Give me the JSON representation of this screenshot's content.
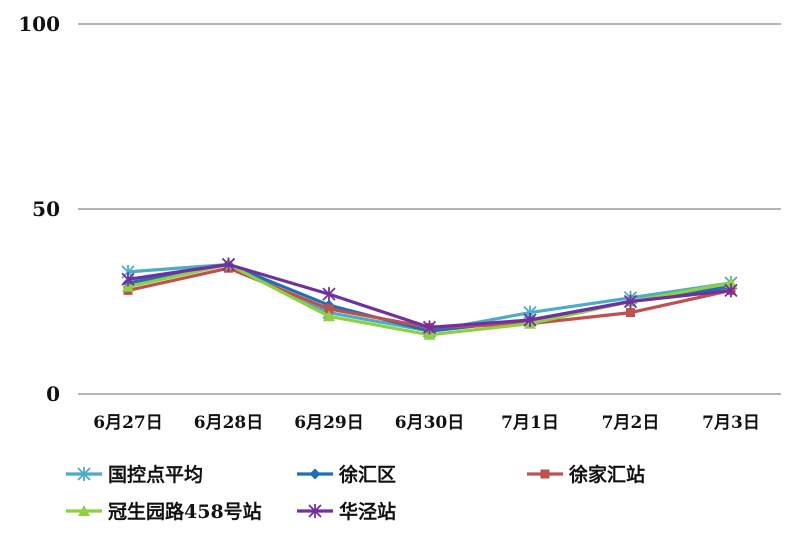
{
  "chart_data": {
    "type": "line",
    "categories": [
      "6月27日",
      "6月28日",
      "6月29日",
      "6月30日",
      "7月1日",
      "7月2日",
      "7月3日"
    ],
    "ylim": [
      0,
      100
    ],
    "yticks": [
      0,
      50,
      100
    ],
    "grid": true,
    "legend_position": "bottom",
    "series": [
      {
        "name": "国控点平均",
        "color": "#4bacc6",
        "marker": "asterisk",
        "values": [
          33,
          35,
          22,
          17,
          22,
          26,
          30
        ]
      },
      {
        "name": "徐汇区",
        "color": "#1f6fb5",
        "marker": "diamond",
        "values": [
          30,
          35,
          24,
          17,
          20,
          25,
          29
        ]
      },
      {
        "name": "徐家汇站",
        "color": "#c0504d",
        "marker": "square",
        "values": [
          28,
          34,
          23,
          18,
          19,
          22,
          28
        ]
      },
      {
        "name": "冠生园路458号站",
        "color": "#8ed043",
        "marker": "triangle",
        "values": [
          29,
          35,
          21,
          16,
          19,
          25,
          30
        ]
      },
      {
        "name": "华泾站",
        "color": "#7030a0",
        "marker": "asterisk",
        "values": [
          31,
          35,
          27,
          18,
          20,
          25,
          28
        ]
      }
    ]
  }
}
